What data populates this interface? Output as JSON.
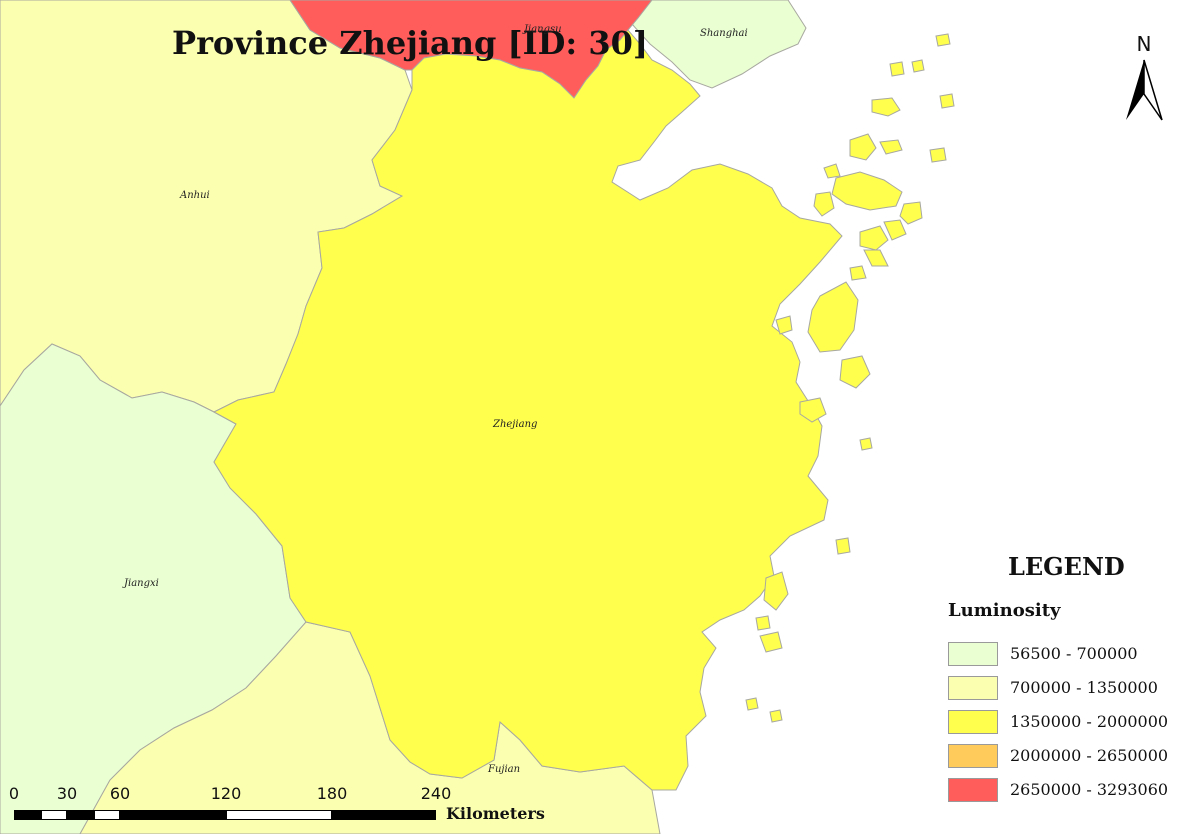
{
  "title": "Province Zhejiang [ID: 30]",
  "places": {
    "jiangsu": "Jiangsu",
    "shanghai": "Shanghai",
    "anhui": "Anhui",
    "zhejiang": "Zhejiang",
    "jiangxi": "Jiangxi",
    "fujian": "Fujian"
  },
  "north_arrow": {
    "label": "N"
  },
  "legend": {
    "title": "LEGEND",
    "subtitle": "Luminosity",
    "classes": [
      {
        "label": "56500 - 700000",
        "color": "#eaffd2"
      },
      {
        "label": "700000 - 1350000",
        "color": "#fbffb0"
      },
      {
        "label": "1350000 - 2000000",
        "color": "#ffff4d"
      },
      {
        "label": "2000000 - 2650000",
        "color": "#ffcc5c"
      },
      {
        "label": "2650000 - 3293060",
        "color": "#ff5c5c"
      }
    ]
  },
  "scale_bar": {
    "ticks": [
      "0",
      "30",
      "60",
      "120",
      "180",
      "240"
    ],
    "unit": "Kilometers"
  },
  "colors": {
    "sea": "#ffffff",
    "border": "#a8a8a0"
  }
}
